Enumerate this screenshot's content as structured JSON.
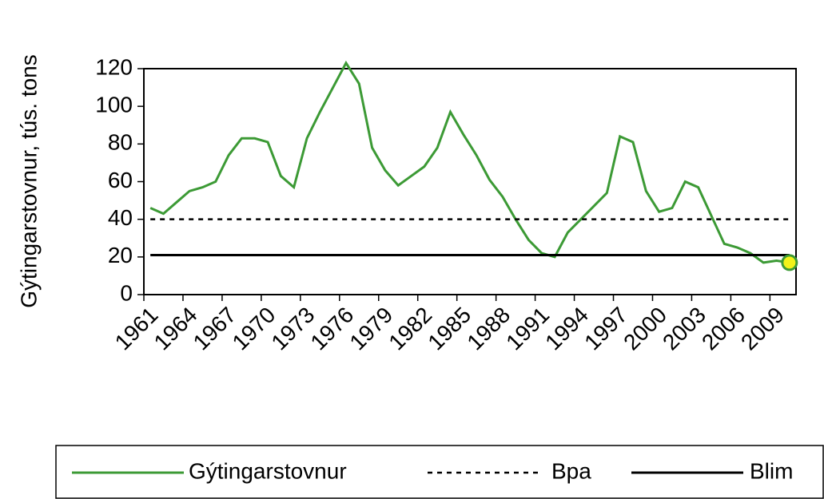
{
  "chart_data": {
    "type": "line",
    "y_label": "Gýtingarstovnur, tús. tons",
    "categories": [
      "1961",
      null,
      null,
      "1964",
      null,
      null,
      "1967",
      null,
      null,
      "1970",
      null,
      null,
      "1973",
      null,
      null,
      "1976",
      null,
      null,
      "1979",
      null,
      null,
      "1982",
      null,
      null,
      "1985",
      null,
      null,
      "1988",
      null,
      null,
      "1991",
      null,
      null,
      "1994",
      null,
      null,
      "1997",
      null,
      null,
      "2000",
      null,
      null,
      "2003",
      null,
      null,
      "2006",
      null,
      null,
      "2009",
      null
    ],
    "series": [
      {
        "name": "Gýtingarstovnur",
        "color": "#3c9a35",
        "style": "solid",
        "values": [
          46,
          43,
          49,
          55,
          57,
          60,
          74,
          83,
          83,
          81,
          63,
          57,
          83,
          97,
          110,
          123,
          112,
          78,
          66,
          58,
          63,
          68,
          78,
          97,
          85,
          74,
          61,
          52,
          40,
          29,
          22,
          20,
          33,
          40,
          47,
          54,
          84,
          81,
          55,
          44,
          46,
          60,
          57,
          42,
          27,
          25,
          22,
          17,
          18,
          17
        ]
      },
      {
        "name": "Bpa",
        "color": "#000000",
        "style": "dashed",
        "values": [
          40,
          40,
          40,
          40,
          40,
          40,
          40,
          40,
          40,
          40,
          40,
          40,
          40,
          40,
          40,
          40,
          40,
          40,
          40,
          40,
          40,
          40,
          40,
          40,
          40,
          40,
          40,
          40,
          40,
          40,
          40,
          40,
          40,
          40,
          40,
          40,
          40,
          40,
          40,
          40,
          40,
          40,
          40,
          40,
          40,
          40,
          40,
          40,
          40,
          40
        ]
      },
      {
        "name": "Blim",
        "color": "#000000",
        "style": "solid",
        "values": [
          21,
          21,
          21,
          21,
          21,
          21,
          21,
          21,
          21,
          21,
          21,
          21,
          21,
          21,
          21,
          21,
          21,
          21,
          21,
          21,
          21,
          21,
          21,
          21,
          21,
          21,
          21,
          21,
          21,
          21,
          21,
          21,
          21,
          21,
          21,
          21,
          21,
          21,
          21,
          21,
          21,
          21,
          21,
          21,
          21,
          21,
          21,
          21,
          21,
          21
        ]
      }
    ],
    "highlight_color": "#f2f21a",
    "ylim": [
      0,
      120
    ],
    "yticks": [
      0,
      20,
      40,
      60,
      80,
      100,
      120
    ]
  }
}
